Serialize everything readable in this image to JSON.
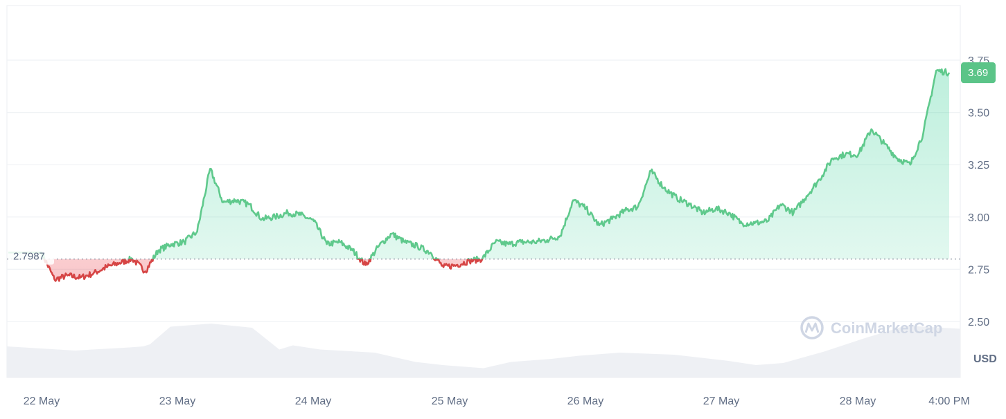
{
  "chart_data": {
    "type": "line",
    "currency_label": "USD",
    "x_labels": [
      "22 May",
      "23 May",
      "24 May",
      "25 May",
      "26 May",
      "27 May",
      "28 May",
      "4:00 PM"
    ],
    "y_ticks": [
      "2.50",
      "2.75",
      "3.00",
      "3.25",
      "3.50",
      "3.75"
    ],
    "ylim": [
      2.5,
      3.75
    ],
    "baseline": {
      "value": 2.7987,
      "label": "2.7987"
    },
    "current": {
      "value": 3.69,
      "label": "3.69"
    },
    "watermark": "CoinMarketCap",
    "colors": {
      "up": "#16c784",
      "up_line": "#5fc98c",
      "down": "#ea3943",
      "down_line": "#d64545",
      "grid": "#eff2f5"
    },
    "series": [
      {
        "x": [
          0.0,
          0.1,
          0.2,
          0.3,
          0.4,
          0.5,
          0.6,
          0.7,
          0.8,
          0.9,
          1.0,
          1.1,
          1.2,
          1.3,
          1.4,
          1.5,
          1.6,
          1.7,
          1.8,
          1.9,
          2.0,
          2.1,
          2.2,
          2.3,
          2.4,
          2.5,
          2.6,
          2.7,
          2.8,
          2.9,
          3.0,
          3.1,
          3.2,
          3.3,
          3.4,
          3.5,
          3.6,
          3.7,
          3.8,
          3.9,
          4.0,
          4.1,
          4.2,
          4.3,
          4.4,
          4.5,
          4.6,
          4.7,
          4.8,
          4.9,
          5.0,
          5.1,
          5.2,
          5.3,
          5.4,
          5.5,
          5.6,
          5.7,
          5.8,
          5.9,
          6.0,
          6.1,
          6.2,
          6.3,
          6.4,
          6.5,
          6.6,
          6.7,
          6.8,
          6.9,
          7.0
        ],
        "values": [
          2.83,
          2.7,
          2.72,
          2.71,
          2.73,
          2.76,
          2.78,
          2.8,
          2.74,
          2.84,
          2.87,
          2.88,
          2.93,
          3.23,
          3.07,
          3.08,
          3.06,
          2.99,
          3.0,
          3.02,
          3.01,
          2.98,
          2.87,
          2.88,
          2.84,
          2.77,
          2.86,
          2.92,
          2.88,
          2.86,
          2.83,
          2.76,
          2.77,
          2.79,
          2.8,
          2.88,
          2.87,
          2.88,
          2.88,
          2.89,
          2.91,
          3.08,
          3.04,
          2.96,
          2.99,
          3.03,
          3.05,
          3.22,
          3.14,
          3.09,
          3.06,
          3.02,
          3.04,
          3.02,
          2.97,
          2.97,
          2.98,
          3.06,
          3.02,
          3.1,
          3.18,
          3.28,
          3.3,
          3.3,
          3.42,
          3.35,
          3.28,
          3.25,
          3.4,
          3.7,
          3.69
        ]
      }
    ],
    "volume": {
      "x": [
        0.0,
        0.5,
        0.9,
        1.0,
        1.05,
        1.2,
        1.5,
        1.8,
        2.0,
        2.1,
        2.3,
        2.7,
        3.0,
        3.2,
        3.5,
        3.7,
        4.0,
        4.2,
        4.5,
        4.9,
        5.3,
        5.5,
        5.7,
        6.0,
        6.3,
        6.6,
        7.0
      ],
      "values": [
        30,
        26,
        29,
        30,
        32,
        49,
        52,
        48,
        27,
        31,
        27,
        24,
        15,
        12,
        9,
        15,
        18,
        21,
        24,
        22,
        16,
        12,
        14,
        25,
        38,
        50,
        47
      ]
    }
  }
}
